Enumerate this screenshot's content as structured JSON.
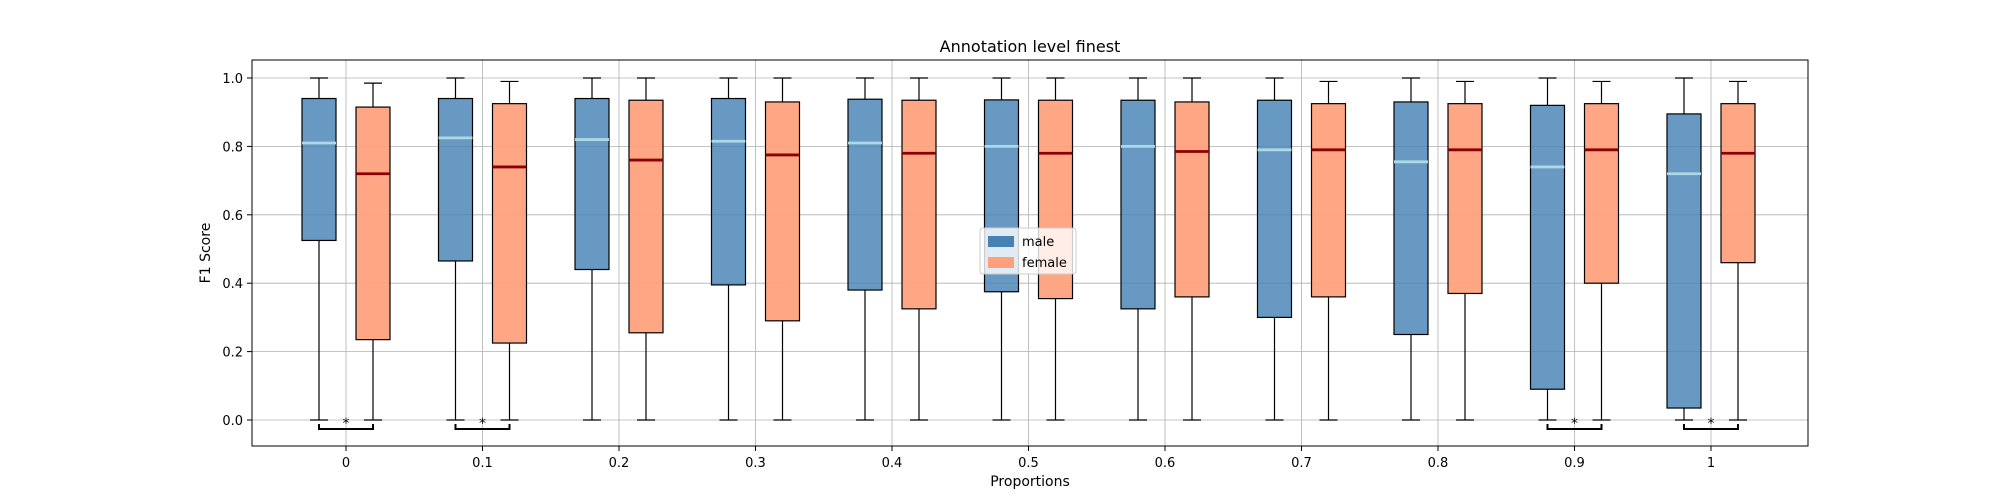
{
  "chart_data": {
    "type": "box",
    "title": "Annotation level finest",
    "xlabel": "Proportions",
    "ylabel": "F1 Score",
    "categories": [
      "0",
      "0.1",
      "0.2",
      "0.3",
      "0.4",
      "0.5",
      "0.6",
      "0.7",
      "0.8",
      "0.9",
      "1"
    ],
    "ylim": [
      -0.08,
      1.05
    ],
    "yticks": [
      "0.0",
      "0.2",
      "0.4",
      "0.6",
      "0.8",
      "1.0"
    ],
    "ytick_values": [
      0.0,
      0.2,
      0.4,
      0.6,
      0.8,
      1.0
    ],
    "grid": true,
    "legend_position": "center",
    "series": [
      {
        "name": "male",
        "color": "#4682b4",
        "median_color": "#add8e6",
        "boxes": [
          {
            "whislo": 0.0,
            "q1": 0.525,
            "med": 0.81,
            "q3": 0.94,
            "whishi": 1.0
          },
          {
            "whislo": 0.0,
            "q1": 0.465,
            "med": 0.825,
            "q3": 0.94,
            "whishi": 1.0
          },
          {
            "whislo": 0.0,
            "q1": 0.44,
            "med": 0.82,
            "q3": 0.94,
            "whishi": 1.0
          },
          {
            "whislo": 0.0,
            "q1": 0.395,
            "med": 0.815,
            "q3": 0.94,
            "whishi": 1.0
          },
          {
            "whislo": 0.0,
            "q1": 0.38,
            "med": 0.81,
            "q3": 0.938,
            "whishi": 1.0
          },
          {
            "whislo": 0.0,
            "q1": 0.375,
            "med": 0.8,
            "q3": 0.936,
            "whishi": 1.0
          },
          {
            "whislo": 0.0,
            "q1": 0.325,
            "med": 0.8,
            "q3": 0.935,
            "whishi": 1.0
          },
          {
            "whislo": 0.0,
            "q1": 0.3,
            "med": 0.79,
            "q3": 0.935,
            "whishi": 1.0
          },
          {
            "whislo": 0.0,
            "q1": 0.25,
            "med": 0.755,
            "q3": 0.93,
            "whishi": 1.0
          },
          {
            "whislo": 0.0,
            "q1": 0.09,
            "med": 0.74,
            "q3": 0.92,
            "whishi": 1.0
          },
          {
            "whislo": 0.0,
            "q1": 0.035,
            "med": 0.72,
            "q3": 0.895,
            "whishi": 1.0
          }
        ]
      },
      {
        "name": "female",
        "color": "#ffa07a",
        "median_color": "#8b0000",
        "boxes": [
          {
            "whislo": 0.0,
            "q1": 0.235,
            "med": 0.72,
            "q3": 0.915,
            "whishi": 0.985
          },
          {
            "whislo": 0.0,
            "q1": 0.225,
            "med": 0.74,
            "q3": 0.925,
            "whishi": 0.99
          },
          {
            "whislo": 0.0,
            "q1": 0.255,
            "med": 0.76,
            "q3": 0.935,
            "whishi": 1.0
          },
          {
            "whislo": 0.0,
            "q1": 0.29,
            "med": 0.775,
            "q3": 0.93,
            "whishi": 1.0
          },
          {
            "whislo": 0.0,
            "q1": 0.325,
            "med": 0.78,
            "q3": 0.935,
            "whishi": 1.0
          },
          {
            "whislo": 0.0,
            "q1": 0.355,
            "med": 0.78,
            "q3": 0.935,
            "whishi": 1.0
          },
          {
            "whislo": 0.0,
            "q1": 0.36,
            "med": 0.785,
            "q3": 0.93,
            "whishi": 1.0
          },
          {
            "whislo": 0.0,
            "q1": 0.36,
            "med": 0.79,
            "q3": 0.925,
            "whishi": 0.99
          },
          {
            "whislo": 0.0,
            "q1": 0.37,
            "med": 0.79,
            "q3": 0.925,
            "whishi": 0.99
          },
          {
            "whislo": 0.0,
            "q1": 0.4,
            "med": 0.79,
            "q3": 0.925,
            "whishi": 0.99
          },
          {
            "whislo": 0.0,
            "q1": 0.46,
            "med": 0.78,
            "q3": 0.925,
            "whishi": 0.99
          }
        ]
      }
    ],
    "significance": [
      {
        "category": "0",
        "label": "*"
      },
      {
        "category": "0.1",
        "label": "*"
      },
      {
        "category": "0.9",
        "label": "*"
      },
      {
        "category": "1",
        "label": "*"
      }
    ]
  }
}
